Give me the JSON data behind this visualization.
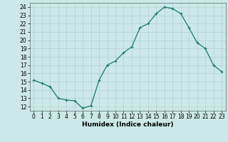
{
  "x": [
    0,
    1,
    2,
    3,
    4,
    5,
    6,
    7,
    8,
    9,
    10,
    11,
    12,
    13,
    14,
    15,
    16,
    17,
    18,
    19,
    20,
    21,
    22,
    23
  ],
  "y": [
    15.2,
    14.8,
    14.4,
    13.0,
    12.8,
    12.7,
    11.8,
    12.1,
    15.2,
    17.0,
    17.5,
    18.5,
    19.2,
    21.5,
    22.0,
    23.2,
    24.0,
    23.8,
    23.2,
    21.5,
    19.7,
    19.0,
    17.0,
    16.2
  ],
  "line_color": "#1a7a6e",
  "marker": "+",
  "marker_size": 3,
  "marker_lw": 0.8,
  "line_width": 0.9,
  "background_color": "#cce8e8",
  "grid_color": "#aacccc",
  "plot_bg": "#cce8e8",
  "xlabel": "Humidex (Indice chaleur)",
  "xlim": [
    -0.5,
    23.5
  ],
  "ylim": [
    11.5,
    24.5
  ],
  "xticks": [
    0,
    1,
    2,
    3,
    4,
    5,
    6,
    7,
    8,
    9,
    10,
    11,
    12,
    13,
    14,
    15,
    16,
    17,
    18,
    19,
    20,
    21,
    22,
    23
  ],
  "yticks": [
    12,
    13,
    14,
    15,
    16,
    17,
    18,
    19,
    20,
    21,
    22,
    23,
    24
  ],
  "xlabel_fontsize": 6.5,
  "tick_fontsize": 5.5
}
